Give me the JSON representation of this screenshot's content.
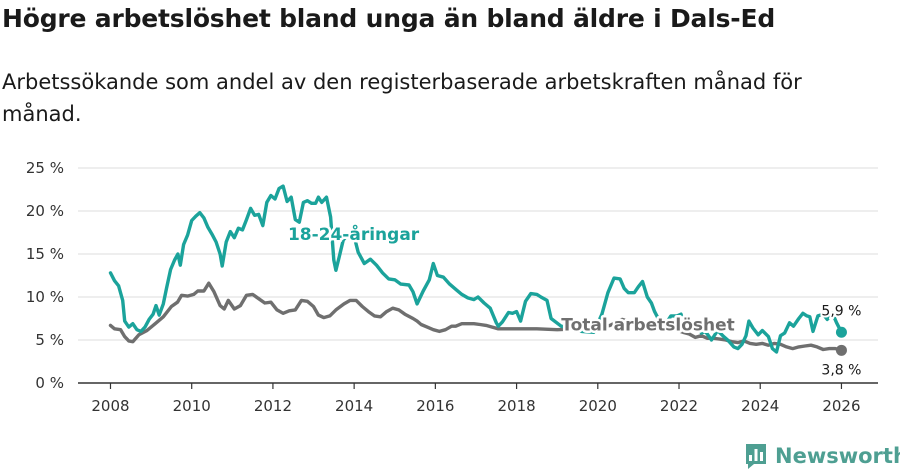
{
  "title": "Högre arbetslöshet bland unga än bland äldre i Dals-Ed",
  "subtitle": "Arbetssökande som andel av den registerbaserade arbetskraften månad för månad.",
  "brand": {
    "name": "Newsworthy",
    "icon": "bar-chart-logo-icon"
  },
  "chart_data": {
    "type": "line",
    "title": "Högre arbetslöshet bland unga än bland äldre i Dals-Ed",
    "xlabel": "",
    "ylabel": "",
    "xlim": [
      2007.2,
      2026.9
    ],
    "ylim": [
      0,
      25
    ],
    "grid": true,
    "x_ticks": [
      {
        "value": 2008,
        "label": "2008"
      },
      {
        "value": 2010,
        "label": "2010"
      },
      {
        "value": 2012,
        "label": "2012"
      },
      {
        "value": 2014,
        "label": "2014"
      },
      {
        "value": 2016,
        "label": "2016"
      },
      {
        "value": 2018,
        "label": "2018"
      },
      {
        "value": 2020,
        "label": "2020"
      },
      {
        "value": 2022,
        "label": "2022"
      },
      {
        "value": 2024,
        "label": "2024"
      },
      {
        "value": 2026,
        "label": "2026"
      }
    ],
    "y_ticks": [
      {
        "value": 0,
        "label": "0 %"
      },
      {
        "value": 5,
        "label": "5 %"
      },
      {
        "value": 10,
        "label": "10 %"
      },
      {
        "value": 15,
        "label": "15 %"
      },
      {
        "value": 20,
        "label": "20 %"
      },
      {
        "value": 25,
        "label": "25 %"
      }
    ],
    "series": [
      {
        "name": "Total arbetslöshet",
        "label": "Total arbetslöshet",
        "label_at": [
          2019.1,
          6.1
        ],
        "color": "#6f6f6f",
        "end_label": "3,8 %",
        "points": [
          [
            2008.0,
            6.7
          ],
          [
            2008.1,
            6.3
          ],
          [
            2008.25,
            6.2
          ],
          [
            2008.35,
            5.4
          ],
          [
            2008.45,
            4.9
          ],
          [
            2008.55,
            4.8
          ],
          [
            2008.7,
            5.6
          ],
          [
            2008.9,
            6.1
          ],
          [
            2009.1,
            6.9
          ],
          [
            2009.3,
            7.7
          ],
          [
            2009.5,
            8.9
          ],
          [
            2009.65,
            9.4
          ],
          [
            2009.75,
            10.2
          ],
          [
            2009.9,
            10.1
          ],
          [
            2010.05,
            10.3
          ],
          [
            2010.15,
            10.7
          ],
          [
            2010.3,
            10.7
          ],
          [
            2010.42,
            11.6
          ],
          [
            2010.55,
            10.6
          ],
          [
            2010.7,
            9.0
          ],
          [
            2010.8,
            8.6
          ],
          [
            2010.9,
            9.6
          ],
          [
            2011.05,
            8.6
          ],
          [
            2011.2,
            9.0
          ],
          [
            2011.35,
            10.2
          ],
          [
            2011.5,
            10.3
          ],
          [
            2011.65,
            9.8
          ],
          [
            2011.8,
            9.3
          ],
          [
            2011.95,
            9.4
          ],
          [
            2012.1,
            8.5
          ],
          [
            2012.25,
            8.1
          ],
          [
            2012.4,
            8.4
          ],
          [
            2012.55,
            8.5
          ],
          [
            2012.7,
            9.6
          ],
          [
            2012.85,
            9.5
          ],
          [
            2013.0,
            8.9
          ],
          [
            2013.12,
            7.9
          ],
          [
            2013.25,
            7.6
          ],
          [
            2013.4,
            7.8
          ],
          [
            2013.55,
            8.5
          ],
          [
            2013.75,
            9.2
          ],
          [
            2013.9,
            9.6
          ],
          [
            2014.05,
            9.6
          ],
          [
            2014.2,
            8.9
          ],
          [
            2014.35,
            8.3
          ],
          [
            2014.5,
            7.8
          ],
          [
            2014.65,
            7.7
          ],
          [
            2014.8,
            8.3
          ],
          [
            2014.95,
            8.7
          ],
          [
            2015.1,
            8.5
          ],
          [
            2015.25,
            8.0
          ],
          [
            2015.45,
            7.5
          ],
          [
            2015.55,
            7.2
          ],
          [
            2015.65,
            6.8
          ],
          [
            2015.8,
            6.5
          ],
          [
            2015.95,
            6.2
          ],
          [
            2016.1,
            6.0
          ],
          [
            2016.25,
            6.2
          ],
          [
            2016.4,
            6.6
          ],
          [
            2016.5,
            6.6
          ],
          [
            2016.65,
            6.9
          ],
          [
            2016.8,
            6.9
          ],
          [
            2016.95,
            6.9
          ],
          [
            2017.1,
            6.8
          ],
          [
            2017.25,
            6.7
          ],
          [
            2017.4,
            6.5
          ],
          [
            2017.55,
            6.3
          ],
          [
            2018.0,
            6.3
          ],
          [
            2018.5,
            6.3
          ],
          [
            2019.0,
            6.2
          ],
          [
            2019.5,
            6.3
          ],
          [
            2020.0,
            6.4
          ],
          [
            2020.3,
            6.7
          ],
          [
            2020.6,
            7.4
          ],
          [
            2020.8,
            7.1
          ],
          [
            2021.0,
            6.8
          ],
          [
            2021.3,
            6.7
          ],
          [
            2021.6,
            6.6
          ],
          [
            2021.9,
            6.2
          ],
          [
            2022.1,
            5.9
          ],
          [
            2022.25,
            5.7
          ],
          [
            2022.4,
            5.3
          ],
          [
            2022.55,
            5.5
          ],
          [
            2022.7,
            5.2
          ],
          [
            2022.85,
            5.2
          ],
          [
            2023.0,
            5.1
          ],
          [
            2023.15,
            5.0
          ],
          [
            2023.3,
            4.8
          ],
          [
            2023.45,
            4.7
          ],
          [
            2023.6,
            4.9
          ],
          [
            2023.75,
            4.6
          ],
          [
            2023.9,
            4.5
          ],
          [
            2024.05,
            4.6
          ],
          [
            2024.2,
            4.4
          ],
          [
            2024.35,
            4.6
          ],
          [
            2024.5,
            4.5
          ],
          [
            2024.65,
            4.2
          ],
          [
            2024.8,
            4.0
          ],
          [
            2024.95,
            4.2
          ],
          [
            2025.1,
            4.3
          ],
          [
            2025.25,
            4.4
          ],
          [
            2025.4,
            4.2
          ],
          [
            2025.55,
            3.9
          ],
          [
            2025.7,
            4.0
          ],
          [
            2025.85,
            4.0
          ],
          [
            2026.0,
            3.8
          ]
        ]
      },
      {
        "name": "18-24-åringar",
        "label": "18-24-åringar",
        "label_at": [
          2012.37,
          16.6
        ],
        "color": "#1ba39b",
        "end_label": "5,9 %",
        "points": [
          [
            2008.0,
            12.8
          ],
          [
            2008.1,
            11.9
          ],
          [
            2008.2,
            11.3
          ],
          [
            2008.3,
            9.6
          ],
          [
            2008.35,
            7.2
          ],
          [
            2008.45,
            6.5
          ],
          [
            2008.55,
            6.9
          ],
          [
            2008.65,
            6.2
          ],
          [
            2008.75,
            6.0
          ],
          [
            2008.85,
            6.5
          ],
          [
            2008.95,
            7.4
          ],
          [
            2009.05,
            8.0
          ],
          [
            2009.12,
            9.0
          ],
          [
            2009.2,
            7.9
          ],
          [
            2009.3,
            9.2
          ],
          [
            2009.38,
            11.0
          ],
          [
            2009.48,
            13.2
          ],
          [
            2009.58,
            14.3
          ],
          [
            2009.66,
            15.0
          ],
          [
            2009.72,
            13.7
          ],
          [
            2009.8,
            16.1
          ],
          [
            2009.9,
            17.2
          ],
          [
            2010.0,
            18.9
          ],
          [
            2010.1,
            19.4
          ],
          [
            2010.2,
            19.8
          ],
          [
            2010.3,
            19.2
          ],
          [
            2010.4,
            18.1
          ],
          [
            2010.5,
            17.3
          ],
          [
            2010.6,
            16.4
          ],
          [
            2010.7,
            15.0
          ],
          [
            2010.75,
            13.6
          ],
          [
            2010.85,
            16.4
          ],
          [
            2010.95,
            17.6
          ],
          [
            2011.05,
            16.9
          ],
          [
            2011.15,
            18.0
          ],
          [
            2011.25,
            17.8
          ],
          [
            2011.35,
            19.0
          ],
          [
            2011.45,
            20.3
          ],
          [
            2011.55,
            19.5
          ],
          [
            2011.65,
            19.6
          ],
          [
            2011.75,
            18.3
          ],
          [
            2011.85,
            21.0
          ],
          [
            2011.95,
            21.8
          ],
          [
            2012.05,
            21.4
          ],
          [
            2012.15,
            22.6
          ],
          [
            2012.25,
            22.9
          ],
          [
            2012.35,
            21.1
          ],
          [
            2012.45,
            21.6
          ],
          [
            2012.55,
            19.0
          ],
          [
            2012.65,
            18.7
          ],
          [
            2012.75,
            21.0
          ],
          [
            2012.85,
            21.2
          ],
          [
            2012.95,
            20.9
          ],
          [
            2013.05,
            20.9
          ],
          [
            2013.12,
            21.6
          ],
          [
            2013.2,
            21.0
          ],
          [
            2013.32,
            21.6
          ],
          [
            2013.42,
            19.3
          ],
          [
            2013.5,
            14.3
          ],
          [
            2013.55,
            13.1
          ],
          [
            2013.63,
            14.6
          ],
          [
            2013.73,
            16.6
          ],
          [
            2013.85,
            17.3
          ],
          [
            2013.97,
            17.6
          ],
          [
            2014.1,
            15.2
          ],
          [
            2014.25,
            13.9
          ],
          [
            2014.4,
            14.4
          ],
          [
            2014.55,
            13.7
          ],
          [
            2014.7,
            12.8
          ],
          [
            2014.85,
            12.1
          ],
          [
            2015.0,
            12.0
          ],
          [
            2015.15,
            11.5
          ],
          [
            2015.35,
            11.4
          ],
          [
            2015.45,
            10.6
          ],
          [
            2015.55,
            9.2
          ],
          [
            2015.7,
            10.7
          ],
          [
            2015.85,
            12.0
          ],
          [
            2015.95,
            13.9
          ],
          [
            2016.05,
            12.5
          ],
          [
            2016.2,
            12.3
          ],
          [
            2016.35,
            11.5
          ],
          [
            2016.5,
            10.9
          ],
          [
            2016.65,
            10.3
          ],
          [
            2016.8,
            9.9
          ],
          [
            2016.95,
            9.7
          ],
          [
            2017.05,
            10.0
          ],
          [
            2017.2,
            9.3
          ],
          [
            2017.35,
            8.7
          ],
          [
            2017.5,
            7.0
          ],
          [
            2017.55,
            6.6
          ],
          [
            2017.65,
            7.1
          ],
          [
            2017.8,
            8.2
          ],
          [
            2017.9,
            8.1
          ],
          [
            2018.0,
            8.3
          ],
          [
            2018.1,
            7.2
          ],
          [
            2018.22,
            9.5
          ],
          [
            2018.35,
            10.4
          ],
          [
            2018.5,
            10.3
          ],
          [
            2018.6,
            10.0
          ],
          [
            2018.75,
            9.6
          ],
          [
            2018.85,
            7.5
          ],
          [
            2019.1,
            6.6
          ],
          [
            2019.3,
            6.4
          ],
          [
            2019.6,
            6.0
          ],
          [
            2019.9,
            5.9
          ],
          [
            2020.1,
            8.0
          ],
          [
            2020.25,
            10.5
          ],
          [
            2020.4,
            12.2
          ],
          [
            2020.55,
            12.1
          ],
          [
            2020.65,
            11.0
          ],
          [
            2020.75,
            10.5
          ],
          [
            2020.9,
            10.5
          ],
          [
            2021.0,
            11.2
          ],
          [
            2021.1,
            11.8
          ],
          [
            2021.22,
            10.0
          ],
          [
            2021.32,
            9.3
          ],
          [
            2021.4,
            8.3
          ],
          [
            2021.5,
            7.4
          ],
          [
            2021.65,
            6.7
          ],
          [
            2021.8,
            7.8
          ],
          [
            2021.95,
            7.8
          ],
          [
            2022.05,
            8.0
          ],
          [
            2022.15,
            6.5
          ],
          [
            2022.3,
            6.9
          ],
          [
            2022.45,
            7.0
          ],
          [
            2022.55,
            5.8
          ],
          [
            2022.65,
            6.0
          ],
          [
            2022.8,
            5.0
          ],
          [
            2022.95,
            6.1
          ],
          [
            2023.1,
            5.4
          ],
          [
            2023.2,
            5.0
          ],
          [
            2023.35,
            4.2
          ],
          [
            2023.45,
            4.0
          ],
          [
            2023.55,
            4.5
          ],
          [
            2023.65,
            5.5
          ],
          [
            2023.72,
            7.2
          ],
          [
            2023.82,
            6.4
          ],
          [
            2023.95,
            5.6
          ],
          [
            2024.05,
            6.1
          ],
          [
            2024.2,
            5.4
          ],
          [
            2024.3,
            4.0
          ],
          [
            2024.4,
            3.6
          ],
          [
            2024.5,
            5.5
          ],
          [
            2024.6,
            5.8
          ],
          [
            2024.72,
            7.0
          ],
          [
            2024.82,
            6.6
          ],
          [
            2024.95,
            7.5
          ],
          [
            2025.05,
            8.1
          ],
          [
            2025.15,
            7.8
          ],
          [
            2025.22,
            7.7
          ],
          [
            2025.3,
            6.0
          ],
          [
            2025.42,
            7.8
          ],
          [
            2025.55,
            8.0
          ],
          [
            2025.65,
            7.4
          ],
          [
            2025.78,
            8.1
          ],
          [
            2025.88,
            7.0
          ],
          [
            2026.0,
            5.9
          ]
        ]
      }
    ]
  }
}
